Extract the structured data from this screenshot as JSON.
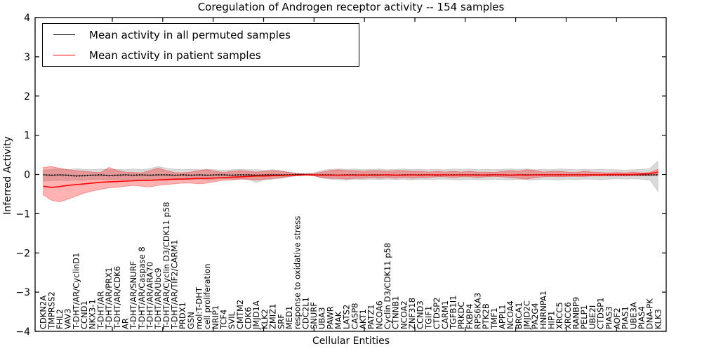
{
  "chart": {
    "title": "Coregulation of Androgen receptor activity -- 154 samples",
    "xlabel": "Cellular Entities",
    "ylabel": "Inferred Activity"
  },
  "legend": {
    "items": [
      {
        "label": "Mean activity in all permuted samples",
        "color": "#000000"
      },
      {
        "label": "Mean activity in patient samples",
        "color": "#ff0000"
      }
    ],
    "position": "upper left"
  },
  "chart_data": {
    "type": "line",
    "title": "Coregulation of Androgen receptor activity -- 154 samples",
    "xlabel": "Cellular Entities",
    "ylabel": "Inferred Activity",
    "ylim": [
      -4,
      4
    ],
    "yticks": [
      4,
      3,
      2,
      1,
      0,
      -1,
      -2,
      -3,
      -4
    ],
    "ytick_labels": [
      "4",
      "3",
      "2",
      "1",
      "0",
      "−1",
      "−2",
      "−3",
      "−4"
    ],
    "grid": false,
    "legend_position": "upper left",
    "categories": [
      "CDKN2A",
      "TMPRSS2",
      "FHL2",
      "VAV3",
      "T-DHT/AR/CyclinD1",
      "CCND1",
      "NKX3-1",
      "T-DHT/AR",
      "T-DHT/AR/PRX1",
      "T-DHT/AR/CDK6",
      "AR",
      "T-DHT/AR/SNURF",
      "T-DHT/AR/Caspase 8",
      "T-DHT/AR/ARA70",
      "T-DHT/AR/Ubc9",
      "T-DHT/AR/Cyclin D3/CDK11 p58",
      "T-DHT/AR/TIF2/CARM1",
      "PRDX1",
      "GSN",
      "mol:T-DHT",
      "cell proliferation",
      "NRIP1",
      "TCF4",
      "SVIL",
      "CMTM2",
      "CDK6",
      "JMJD1A",
      "KLK2",
      "ZMIZ1",
      "SRF",
      "MED1",
      "response to oxidative stress",
      "CDC2L1",
      "SNURF",
      "UBA3",
      "PAWR",
      "MAK",
      "LATS2",
      "CASP8",
      "AKT1",
      "PATZ1",
      "NCOA6",
      "Cyclin D3/CDK11 p58",
      "CTNNB1",
      "NCOA2",
      "ZNF318",
      "CCND3",
      "TGIF1",
      "CTDSP2",
      "CARM1",
      "TGFB1I1",
      "PRKDC",
      "FKBP4",
      "RPS6KA3",
      "PTK2B",
      "TMF1",
      "APPL1",
      "NCOA4",
      "BRCA1",
      "JMJD2C",
      "PA2G4",
      "HNRNPA1",
      "HIP1",
      "XRCC5",
      "XRCC6",
      "RANBP9",
      "PELP1",
      "UBE2I",
      "CTDSP1",
      "PIAS3",
      "AOF2",
      "PIAS1",
      "UBE3A",
      "PIAS4",
      "DNA-PK",
      "KLK3"
    ],
    "series": [
      {
        "name": "Mean activity in all permuted samples",
        "color": "#000000",
        "band_color": "#bbbbbb",
        "band_opacity": 0.55,
        "values": [
          -0.01,
          -0.02,
          -0.01,
          -0.02,
          -0.04,
          -0.03,
          -0.02,
          -0.01,
          -0.03,
          -0.02,
          -0.01,
          -0.02,
          -0.01,
          -0.02,
          -0.01,
          -0.01,
          -0.02,
          -0.01,
          -0.02,
          -0.01,
          -0.02,
          -0.01,
          -0.01,
          -0.02,
          -0.01,
          -0.01,
          -0.02,
          -0.01,
          -0.01,
          -0.01,
          -0.01,
          0,
          0,
          -0.01,
          -0.01,
          -0.01,
          -0.02,
          -0.01,
          -0.01,
          -0.02,
          -0.01,
          -0.01,
          -0.01,
          -0.02,
          -0.01,
          -0.01,
          -0.01,
          -0.01,
          -0.02,
          -0.01,
          -0.01,
          -0.01,
          -0.01,
          -0.01,
          -0.02,
          -0.01,
          -0.01,
          -0.02,
          -0.01,
          -0.01,
          -0.01,
          -0.01,
          -0.01,
          -0.01,
          -0.01,
          -0.01,
          -0.01,
          -0.01,
          -0.01,
          -0.01,
          -0.01,
          -0.01,
          -0.01,
          -0.01,
          -0.01,
          -0.01
        ],
        "band_upper": [
          0.11,
          0.13,
          0.14,
          0.12,
          0.15,
          0.13,
          0.12,
          0.14,
          0.12,
          0.13,
          0.12,
          0.14,
          0.12,
          0.15,
          0.2,
          0.16,
          0.13,
          0.12,
          0.13,
          0.12,
          0.13,
          0.12,
          0.11,
          0.12,
          0.13,
          0.12,
          0.12,
          0.11,
          0.12,
          0.1,
          0.06,
          0.03,
          0.02,
          0.04,
          0.1,
          0.13,
          0.14,
          0.13,
          0.14,
          0.12,
          0.13,
          0.14,
          0.12,
          0.13,
          0.14,
          0.12,
          0.13,
          0.12,
          0.13,
          0.12,
          0.14,
          0.13,
          0.14,
          0.12,
          0.13,
          0.12,
          0.13,
          0.14,
          0.13,
          0.14,
          0.12,
          0.13,
          0.12,
          0.14,
          0.13,
          0.12,
          0.13,
          0.12,
          0.13,
          0.12,
          0.12,
          0.11,
          0.12,
          0.13,
          0.15,
          0.34
        ],
        "band_lower": [
          -0.17,
          -0.16,
          -0.15,
          -0.16,
          -0.14,
          -0.15,
          -0.13,
          -0.12,
          -0.14,
          -0.12,
          -0.13,
          -0.12,
          -0.14,
          -0.12,
          -0.13,
          -0.12,
          -0.13,
          -0.12,
          -0.13,
          -0.12,
          -0.14,
          -0.12,
          -0.11,
          -0.12,
          -0.11,
          -0.13,
          -0.2,
          -0.14,
          -0.12,
          -0.1,
          -0.06,
          -0.03,
          -0.02,
          -0.04,
          -0.09,
          -0.12,
          -0.13,
          -0.14,
          -0.12,
          -0.13,
          -0.12,
          -0.13,
          -0.12,
          -0.13,
          -0.12,
          -0.14,
          -0.12,
          -0.13,
          -0.12,
          -0.12,
          -0.13,
          -0.14,
          -0.12,
          -0.13,
          -0.14,
          -0.12,
          -0.13,
          -0.14,
          -0.12,
          -0.13,
          -0.14,
          -0.12,
          -0.13,
          -0.14,
          -0.12,
          -0.13,
          -0.12,
          -0.12,
          -0.13,
          -0.12,
          -0.11,
          -0.12,
          -0.11,
          -0.12,
          -0.14,
          -0.43
        ]
      },
      {
        "name": "Mean activity in patient samples",
        "color": "#ff0000",
        "band_color": "#ff0000",
        "band_opacity": 0.3,
        "values": [
          -0.3,
          -0.33,
          -0.31,
          -0.28,
          -0.26,
          -0.24,
          -0.22,
          -0.2,
          -0.19,
          -0.18,
          -0.17,
          -0.16,
          -0.15,
          -0.15,
          -0.14,
          -0.13,
          -0.12,
          -0.12,
          -0.11,
          -0.1,
          -0.1,
          -0.09,
          -0.08,
          -0.07,
          -0.06,
          -0.05,
          -0.04,
          -0.04,
          -0.03,
          -0.03,
          -0.02,
          -0.02,
          -0.01,
          -0.01,
          -0.02,
          -0.02,
          -0.02,
          -0.02,
          -0.02,
          -0.01,
          -0.02,
          -0.02,
          -0.01,
          -0.02,
          -0.02,
          -0.01,
          -0.02,
          -0.01,
          -0.01,
          -0.01,
          -0.02,
          -0.01,
          -0.01,
          -0.02,
          -0.01,
          -0.01,
          -0.01,
          -0.02,
          -0.01,
          -0.02,
          -0.01,
          -0.01,
          -0.01,
          -0.01,
          -0.01,
          -0.01,
          -0.01,
          -0.01,
          -0.01,
          0,
          0,
          0,
          0,
          0.01,
          0.02,
          0.06
        ],
        "band_upper": [
          0.18,
          0.2,
          0.16,
          0.12,
          0.1,
          0.08,
          0.06,
          0.05,
          0.18,
          0.1,
          0.06,
          0.05,
          0.04,
          0.1,
          0.16,
          0.1,
          0.05,
          0.04,
          0.06,
          0.1,
          0.12,
          0.08,
          0.05,
          0.08,
          0.1,
          0.08,
          0.06,
          0.08,
          0.1,
          0.08,
          0.05,
          0.02,
          0.01,
          0.02,
          0.06,
          0.1,
          0.12,
          0.1,
          0.1,
          0.08,
          0.1,
          0.1,
          0.08,
          0.1,
          0.1,
          0.08,
          0.08,
          0.06,
          0.08,
          0.06,
          0.08,
          0.06,
          0.08,
          0.06,
          0.06,
          0.05,
          0.08,
          0.1,
          0.08,
          0.12,
          0.1,
          0.06,
          0.08,
          0.08,
          0.06,
          0.05,
          0.08,
          0.06,
          0.05,
          0.04,
          0.05,
          0.04,
          0.06,
          0.04,
          0.05,
          0.13
        ],
        "band_lower": [
          -0.52,
          -0.66,
          -0.7,
          -0.63,
          -0.55,
          -0.48,
          -0.42,
          -0.38,
          -0.34,
          -0.33,
          -0.3,
          -0.28,
          -0.3,
          -0.32,
          -0.28,
          -0.26,
          -0.24,
          -0.22,
          -0.22,
          -0.24,
          -0.22,
          -0.18,
          -0.15,
          -0.14,
          -0.12,
          -0.12,
          -0.14,
          -0.12,
          -0.1,
          -0.08,
          -0.05,
          -0.03,
          -0.02,
          -0.03,
          -0.08,
          -0.1,
          -0.1,
          -0.12,
          -0.1,
          -0.1,
          -0.08,
          -0.1,
          -0.08,
          -0.1,
          -0.08,
          -0.1,
          -0.08,
          -0.08,
          -0.06,
          -0.06,
          -0.08,
          -0.06,
          -0.06,
          -0.08,
          -0.06,
          -0.05,
          -0.06,
          -0.08,
          -0.1,
          -0.12,
          -0.08,
          -0.06,
          -0.05,
          -0.06,
          -0.05,
          -0.05,
          -0.05,
          -0.04,
          -0.04,
          -0.04,
          -0.04,
          -0.04,
          -0.03,
          -0.03,
          -0.03,
          -0.02
        ]
      }
    ]
  }
}
